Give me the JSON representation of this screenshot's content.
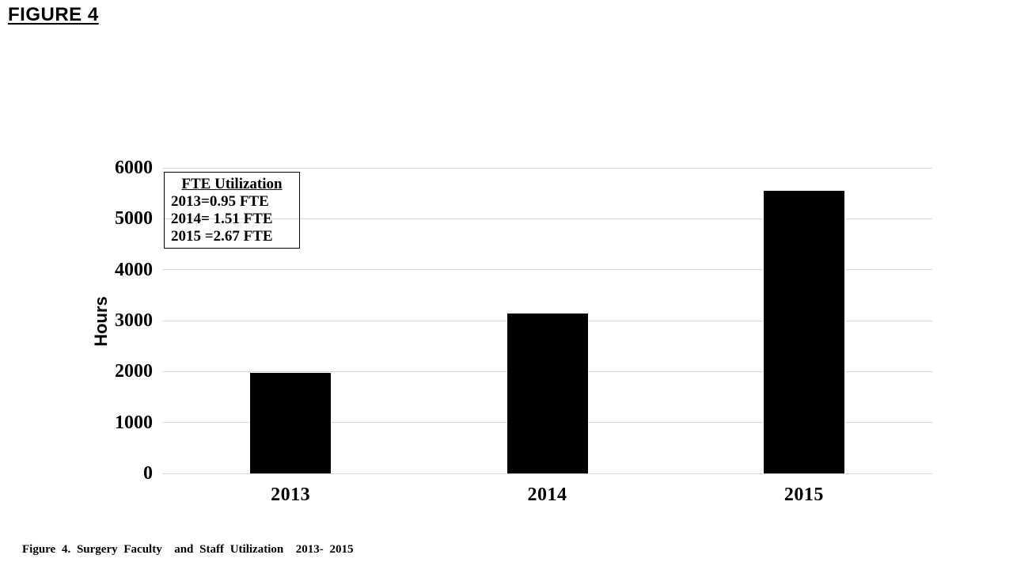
{
  "page": {
    "heading": "FIGURE 4",
    "caption": "Figure 4. Surgery Faculty  and Staff Utilization  2013- 2015"
  },
  "chart_data": {
    "type": "bar",
    "title": "",
    "categories": [
      "2013",
      "2014",
      "2015"
    ],
    "values": [
      1976,
      3141,
      5554
    ],
    "xlabel": "",
    "ylabel": "Hours",
    "ylim": [
      0,
      6000
    ],
    "yticks": [
      0,
      1000,
      2000,
      3000,
      4000,
      5000,
      6000
    ],
    "grid": true,
    "legend_position": "none",
    "bar_color": "#000000",
    "gridline_color": "#d9d9d9",
    "annotation_box": {
      "title": "FTE Utilization",
      "lines": [
        "2013=0.95 FTE",
        "2014= 1.51 FTE",
        "2015 =2.67 FTE"
      ]
    }
  }
}
